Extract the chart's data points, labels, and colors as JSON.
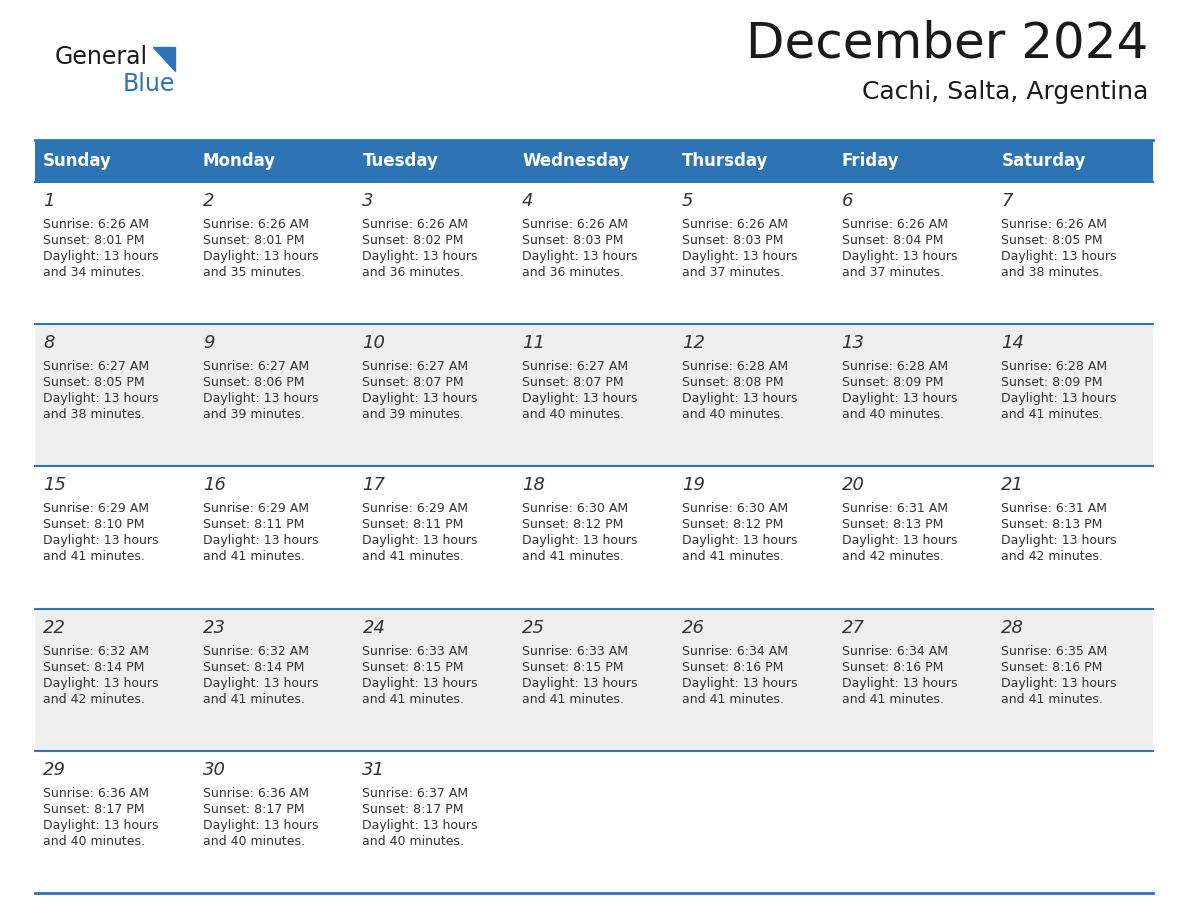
{
  "title": "December 2024",
  "subtitle": "Cachi, Salta, Argentina",
  "header_color": "#2E74B5",
  "header_text_color": "#FFFFFF",
  "cell_bg_white": "#FFFFFF",
  "cell_bg_gray": "#EFEFEF",
  "text_color": "#404040",
  "border_color": "#2E74B5",
  "days_of_week": [
    "Sunday",
    "Monday",
    "Tuesday",
    "Wednesday",
    "Thursday",
    "Friday",
    "Saturday"
  ],
  "weeks": [
    [
      {
        "day": 1,
        "sunrise": "6:26 AM",
        "sunset": "8:01 PM",
        "daylight_hours": 13,
        "daylight_minutes": 34
      },
      {
        "day": 2,
        "sunrise": "6:26 AM",
        "sunset": "8:01 PM",
        "daylight_hours": 13,
        "daylight_minutes": 35
      },
      {
        "day": 3,
        "sunrise": "6:26 AM",
        "sunset": "8:02 PM",
        "daylight_hours": 13,
        "daylight_minutes": 36
      },
      {
        "day": 4,
        "sunrise": "6:26 AM",
        "sunset": "8:03 PM",
        "daylight_hours": 13,
        "daylight_minutes": 36
      },
      {
        "day": 5,
        "sunrise": "6:26 AM",
        "sunset": "8:03 PM",
        "daylight_hours": 13,
        "daylight_minutes": 37
      },
      {
        "day": 6,
        "sunrise": "6:26 AM",
        "sunset": "8:04 PM",
        "daylight_hours": 13,
        "daylight_minutes": 37
      },
      {
        "day": 7,
        "sunrise": "6:26 AM",
        "sunset": "8:05 PM",
        "daylight_hours": 13,
        "daylight_minutes": 38
      }
    ],
    [
      {
        "day": 8,
        "sunrise": "6:27 AM",
        "sunset": "8:05 PM",
        "daylight_hours": 13,
        "daylight_minutes": 38
      },
      {
        "day": 9,
        "sunrise": "6:27 AM",
        "sunset": "8:06 PM",
        "daylight_hours": 13,
        "daylight_minutes": 39
      },
      {
        "day": 10,
        "sunrise": "6:27 AM",
        "sunset": "8:07 PM",
        "daylight_hours": 13,
        "daylight_minutes": 39
      },
      {
        "day": 11,
        "sunrise": "6:27 AM",
        "sunset": "8:07 PM",
        "daylight_hours": 13,
        "daylight_minutes": 40
      },
      {
        "day": 12,
        "sunrise": "6:28 AM",
        "sunset": "8:08 PM",
        "daylight_hours": 13,
        "daylight_minutes": 40
      },
      {
        "day": 13,
        "sunrise": "6:28 AM",
        "sunset": "8:09 PM",
        "daylight_hours": 13,
        "daylight_minutes": 40
      },
      {
        "day": 14,
        "sunrise": "6:28 AM",
        "sunset": "8:09 PM",
        "daylight_hours": 13,
        "daylight_minutes": 41
      }
    ],
    [
      {
        "day": 15,
        "sunrise": "6:29 AM",
        "sunset": "8:10 PM",
        "daylight_hours": 13,
        "daylight_minutes": 41
      },
      {
        "day": 16,
        "sunrise": "6:29 AM",
        "sunset": "8:11 PM",
        "daylight_hours": 13,
        "daylight_minutes": 41
      },
      {
        "day": 17,
        "sunrise": "6:29 AM",
        "sunset": "8:11 PM",
        "daylight_hours": 13,
        "daylight_minutes": 41
      },
      {
        "day": 18,
        "sunrise": "6:30 AM",
        "sunset": "8:12 PM",
        "daylight_hours": 13,
        "daylight_minutes": 41
      },
      {
        "day": 19,
        "sunrise": "6:30 AM",
        "sunset": "8:12 PM",
        "daylight_hours": 13,
        "daylight_minutes": 41
      },
      {
        "day": 20,
        "sunrise": "6:31 AM",
        "sunset": "8:13 PM",
        "daylight_hours": 13,
        "daylight_minutes": 42
      },
      {
        "day": 21,
        "sunrise": "6:31 AM",
        "sunset": "8:13 PM",
        "daylight_hours": 13,
        "daylight_minutes": 42
      }
    ],
    [
      {
        "day": 22,
        "sunrise": "6:32 AM",
        "sunset": "8:14 PM",
        "daylight_hours": 13,
        "daylight_minutes": 42
      },
      {
        "day": 23,
        "sunrise": "6:32 AM",
        "sunset": "8:14 PM",
        "daylight_hours": 13,
        "daylight_minutes": 41
      },
      {
        "day": 24,
        "sunrise": "6:33 AM",
        "sunset": "8:15 PM",
        "daylight_hours": 13,
        "daylight_minutes": 41
      },
      {
        "day": 25,
        "sunrise": "6:33 AM",
        "sunset": "8:15 PM",
        "daylight_hours": 13,
        "daylight_minutes": 41
      },
      {
        "day": 26,
        "sunrise": "6:34 AM",
        "sunset": "8:16 PM",
        "daylight_hours": 13,
        "daylight_minutes": 41
      },
      {
        "day": 27,
        "sunrise": "6:34 AM",
        "sunset": "8:16 PM",
        "daylight_hours": 13,
        "daylight_minutes": 41
      },
      {
        "day": 28,
        "sunrise": "6:35 AM",
        "sunset": "8:16 PM",
        "daylight_hours": 13,
        "daylight_minutes": 41
      }
    ],
    [
      {
        "day": 29,
        "sunrise": "6:36 AM",
        "sunset": "8:17 PM",
        "daylight_hours": 13,
        "daylight_minutes": 40
      },
      {
        "day": 30,
        "sunrise": "6:36 AM",
        "sunset": "8:17 PM",
        "daylight_hours": 13,
        "daylight_minutes": 40
      },
      {
        "day": 31,
        "sunrise": "6:37 AM",
        "sunset": "8:17 PM",
        "daylight_hours": 13,
        "daylight_minutes": 40
      },
      null,
      null,
      null,
      null
    ]
  ],
  "figsize": [
    11.88,
    9.18
  ],
  "dpi": 100
}
